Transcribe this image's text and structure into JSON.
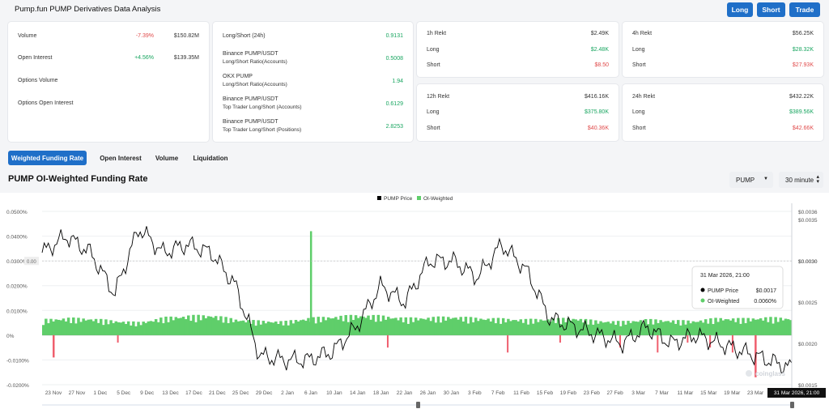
{
  "app_title": "Pump.fun PUMP Derivatives Data Analysis",
  "buttons": {
    "long": "Long",
    "short": "Short",
    "trade": "Trade"
  },
  "overview": [
    {
      "label": "Volume",
      "change": "-7.39%",
      "value": "$150.82M"
    },
    {
      "label": "Open Interest",
      "change": "+4.56%",
      "value": "$139.35M"
    },
    {
      "label": "Options Volume",
      "change": "",
      "value": ""
    },
    {
      "label": "Options Open Interest",
      "change": "",
      "value": ""
    }
  ],
  "ratios": [
    {
      "title": "Long/Short (24h)",
      "sub": "",
      "value": "0.9131"
    },
    {
      "title": "Binance PUMP/USDT",
      "sub": "Long/Short Ratio(Accounts)",
      "value": "0.5008"
    },
    {
      "title": "OKX PUMP",
      "sub": "Long/Short Ratio(Accounts)",
      "value": "1.94"
    },
    {
      "title": "Binance PUMP/USDT",
      "sub": "Top Trader Long/Short (Accounts)",
      "value": "0.6129"
    },
    {
      "title": "Binance PUMP/USDT",
      "sub": "Top Trader Long/Short (Positions)",
      "value": "2.8253"
    }
  ],
  "rekt": [
    {
      "title": "1h Rekt",
      "total": "$2.49K",
      "long_label": "Long",
      "long": "$2.48K",
      "short_label": "Short",
      "short": "$8.50"
    },
    {
      "title": "4h Rekt",
      "total": "$56.25K",
      "long_label": "Long",
      "long": "$28.32K",
      "short_label": "Short",
      "short": "$27.93K"
    },
    {
      "title": "12h Rekt",
      "total": "$416.16K",
      "long_label": "Long",
      "long": "$375.80K",
      "short_label": "Short",
      "short": "$40.36K"
    },
    {
      "title": "24h Rekt",
      "total": "$432.22K",
      "long_label": "Long",
      "long": "$389.56K",
      "short_label": "Short",
      "short": "$42.66K"
    }
  ],
  "tabs": [
    "Weighted Funding Rate",
    "Open Interest",
    "Volume",
    "Liquidation"
  ],
  "chart_title": "PUMP OI-Weighted Funding Rate",
  "selects": {
    "symbol": "PUMP",
    "interval": "30 minute"
  },
  "tooltip": {
    "date": "31 Mar 2026, 21:00",
    "price_label": "PUMP Price",
    "price_value": "$0.0017",
    "oi_label": "OI-Weighted",
    "oi_value": "0.0060%"
  },
  "crosshair_label": "31 Mar 2026, 21:00",
  "hover_value": "0.00",
  "hover_price": "$0.0030",
  "watermark": "coinglass",
  "colors": {
    "accent": "#1f6fc8",
    "positive": "#5fce6a",
    "negative": "#ef5f6e",
    "price_line": "#000000"
  },
  "chart_data": {
    "type": "bar",
    "legend": [
      "PUMP Price",
      "OI-Weighted"
    ],
    "legend_position": "top-center",
    "x": [
      "23 Nov",
      "27 Nov",
      "1 Dec",
      "5 Dec",
      "9 Dec",
      "13 Dec",
      "17 Dec",
      "21 Dec",
      "25 Dec",
      "29 Dec",
      "2 Jan",
      "6 Jan",
      "10 Jan",
      "14 Jan",
      "18 Jan",
      "22 Jan",
      "26 Jan",
      "30 Jan",
      "3 Feb",
      "7 Feb",
      "11 Feb",
      "15 Feb",
      "19 Feb",
      "23 Feb",
      "27 Feb",
      "3 Mar",
      "7 Mar",
      "11 Mar",
      "15 Mar",
      "19 Mar",
      "23 Mar",
      "27 Mar"
    ],
    "y_left_ticks": [
      "0.0500%",
      "0.0400%",
      "0.0300%",
      "0.0200%",
      "0.0100%",
      "0%",
      "-0.0100%",
      "-0.0200%"
    ],
    "y_left_range": [
      -0.0002,
      0.0005
    ],
    "y_right_ticks": [
      "$0.0036",
      "$0.0035",
      "$0.0030",
      "$0.0025",
      "$0.0020",
      "$0.0015"
    ],
    "y_right_range": [
      0.0015,
      0.0036
    ],
    "series": [
      {
        "name": "PUMP Price",
        "type": "line",
        "axis": "right",
        "values": [
          0.0031,
          0.0033,
          0.0031,
          0.0026,
          0.0034,
          0.0031,
          0.0032,
          0.0031,
          0.0027,
          0.00185,
          0.0018,
          0.0018,
          0.0019,
          0.0022,
          0.0027,
          0.0025,
          0.003,
          0.003,
          0.0028,
          0.0032,
          0.0029,
          0.0023,
          0.0022,
          0.0021,
          0.002,
          0.0022,
          0.002,
          0.0021,
          0.002,
          0.0019,
          0.0018,
          0.0017
        ]
      },
      {
        "name": "OI-Weighted",
        "type": "bar",
        "axis": "left",
        "values": [
          0.0055,
          0.006,
          0.0058,
          0.005,
          0.0045,
          0.0062,
          0.0068,
          0.007,
          0.0055,
          0.005,
          0.0048,
          0.006,
          0.0065,
          0.007,
          0.0068,
          0.006,
          0.0062,
          0.0065,
          0.006,
          0.0058,
          0.0055,
          0.0057,
          0.006,
          0.005,
          0.0048,
          0.0055,
          0.0052,
          0.005,
          0.006,
          0.0058,
          0.0062,
          0.006
        ],
        "notable": [
          {
            "x": "6 Jan",
            "value": 0.042
          },
          {
            "x": "23 Nov",
            "value": -0.009
          },
          {
            "x": "23 Mar",
            "value": -0.017
          }
        ]
      }
    ]
  }
}
